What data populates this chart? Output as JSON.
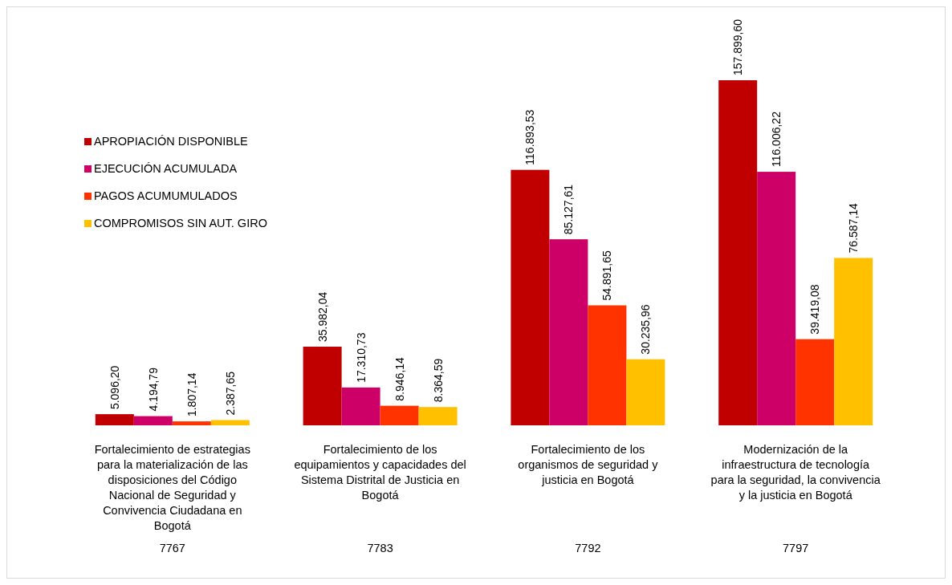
{
  "chart_data": {
    "type": "bar",
    "categories": [
      "7767",
      "7783",
      "7792",
      "7797"
    ],
    "annotations": [
      "Fortalecimiento de estrategias\npara la materialización de las\ndisposiciones del Código\nNacional de Seguridad y\nConvivencia Ciudadana en\nBogotá",
      "Fortalecimiento de los\nequipamientos y capacidades del\nSistema Distrital de Justicia en\nBogotá",
      "Fortalecimiento de los\norganismos de seguridad y\njusticia en Bogotá",
      "Modernización de la\ninfraestructura de tecnología\npara la seguridad, la convivencia\ny la justicia en Bogotá"
    ],
    "series": [
      {
        "name": "APROPIACIÓN DISPONIBLE",
        "color": "#c00000",
        "values": [
          5096.2,
          35982.04,
          116893.53,
          157899.6
        ],
        "value_labels": [
          "5.096,20",
          "35.982,04",
          "116.893,53",
          "157.899,60"
        ]
      },
      {
        "name": "EJECUCIÓN  ACUMULADA",
        "color": "#cc0066",
        "values": [
          4194.79,
          17310.73,
          85127.61,
          116006.22
        ],
        "value_labels": [
          "4.194,79",
          "17.310,73",
          "85.127,61",
          "116.006,22"
        ]
      },
      {
        "name": "PAGOS ACUMUMULADOS",
        "color": "#ff3300",
        "values": [
          1807.14,
          8946.14,
          54891.65,
          39419.08
        ],
        "value_labels": [
          "1.807,14",
          "8.946,14",
          "54.891,65",
          "39.419,08"
        ]
      },
      {
        "name": "COMPROMISOS SIN AUT. GIRO",
        "color": "#ffc000",
        "values": [
          2387.65,
          8364.59,
          30235.96,
          76587.14
        ],
        "value_labels": [
          "2.387,65",
          "8.364,59",
          "30.235,96",
          "76.587,14"
        ]
      }
    ],
    "legend": "top left"
  }
}
